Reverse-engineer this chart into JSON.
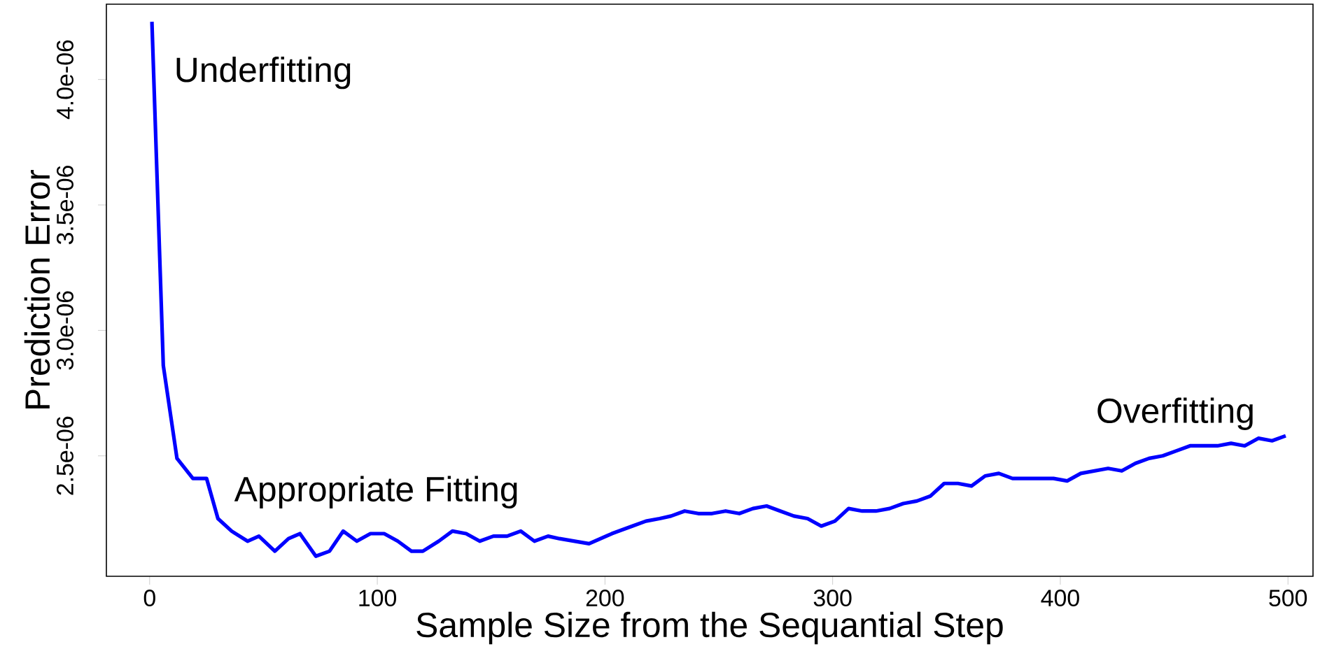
{
  "chart_data": {
    "type": "line",
    "xlabel": "Sample Size from the Sequantial Step",
    "ylabel": "Prediction Error",
    "x": [
      1,
      6,
      12,
      19,
      25,
      30,
      36,
      43,
      48,
      55,
      61,
      66,
      73,
      79,
      85,
      91,
      97,
      103,
      109,
      115,
      120,
      127,
      133,
      139,
      145,
      151,
      157,
      163,
      169,
      175,
      180,
      193,
      203,
      212,
      218,
      224,
      229,
      235,
      241,
      247,
      253,
      259,
      265,
      271,
      277,
      283,
      289,
      295,
      301,
      307,
      313,
      319,
      325,
      331,
      337,
      343,
      349,
      355,
      361,
      367,
      373,
      379,
      385,
      391,
      397,
      403,
      409,
      415,
      421,
      427,
      433,
      439,
      445,
      451,
      457,
      463,
      469,
      475,
      481,
      487,
      493,
      499
    ],
    "series": [
      {
        "color": "#0000ff",
        "values": [
          4.23e-06,
          2.86e-06,
          2.49e-06,
          2.41e-06,
          2.41e-06,
          2.25e-06,
          2.2e-06,
          2.16e-06,
          2.18e-06,
          2.12e-06,
          2.17e-06,
          2.19e-06,
          2.1e-06,
          2.12e-06,
          2.2e-06,
          2.16e-06,
          2.19e-06,
          2.19e-06,
          2.16e-06,
          2.12e-06,
          2.12e-06,
          2.16e-06,
          2.2e-06,
          2.19e-06,
          2.16e-06,
          2.18e-06,
          2.18e-06,
          2.2e-06,
          2.16e-06,
          2.18e-06,
          2.17e-06,
          2.15e-06,
          2.19e-06,
          2.22e-06,
          2.24e-06,
          2.25e-06,
          2.26e-06,
          2.28e-06,
          2.27e-06,
          2.27e-06,
          2.28e-06,
          2.27e-06,
          2.29e-06,
          2.3e-06,
          2.28e-06,
          2.26e-06,
          2.25e-06,
          2.22e-06,
          2.24e-06,
          2.29e-06,
          2.28e-06,
          2.28e-06,
          2.29e-06,
          2.31e-06,
          2.32e-06,
          2.34e-06,
          2.39e-06,
          2.39e-06,
          2.38e-06,
          2.42e-06,
          2.43e-06,
          2.41e-06,
          2.41e-06,
          2.41e-06,
          2.41e-06,
          2.4e-06,
          2.43e-06,
          2.44e-06,
          2.45e-06,
          2.44e-06,
          2.47e-06,
          2.49e-06,
          2.5e-06,
          2.52e-06,
          2.54e-06,
          2.54e-06,
          2.54e-06,
          2.55e-06,
          2.54e-06,
          2.57e-06,
          2.56e-06,
          2.58e-06
        ]
      }
    ],
    "xlim": [
      -19,
      511
    ],
    "xticks": [
      0,
      100,
      200,
      300,
      400,
      500
    ],
    "ylim": [
      2.02e-06,
      4.3e-06
    ],
    "yticks": [
      {
        "value": 2.5e-06,
        "label": "2.5e-06"
      },
      {
        "value": 3e-06,
        "label": "3.0e-06"
      },
      {
        "value": 3.5e-06,
        "label": "3.5e-06"
      },
      {
        "value": 4e-06,
        "label": "4.0e-06"
      }
    ],
    "annotations": [
      "Underfitting",
      "Appropriate Fitting",
      "Overfitting"
    ],
    "grid": false,
    "marker": "none",
    "line_style": "solid"
  }
}
